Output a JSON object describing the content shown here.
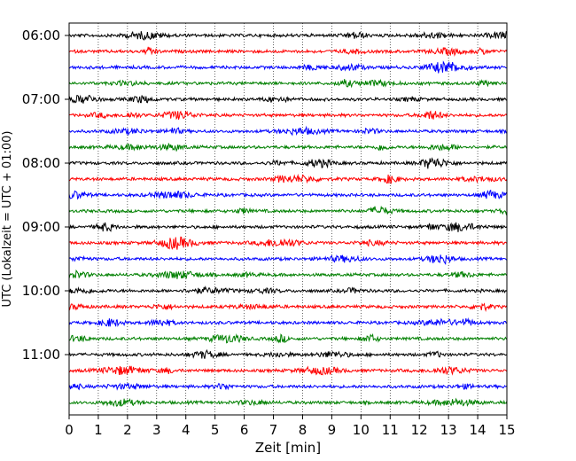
{
  "chart_data": {
    "type": "line",
    "title": "",
    "xlabel": "Zeit  [min]",
    "ylabel": "UTC (Lokalzeit = UTC + 01:00)",
    "xlim": [
      0,
      15
    ],
    "x_ticks": [
      0,
      1,
      2,
      3,
      4,
      5,
      6,
      7,
      8,
      9,
      10,
      11,
      12,
      13,
      14,
      15
    ],
    "x_tick_labels": [
      "0",
      "1",
      "2",
      "3",
      "4",
      "5",
      "6",
      "7",
      "8",
      "9",
      "10",
      "11",
      "12",
      "13",
      "14",
      "15"
    ],
    "y_tick_labels": [
      "06:00",
      "07:00",
      "08:00",
      "09:00",
      "10:00",
      "11:00"
    ],
    "grid_x": true,
    "colors": [
      "#000000",
      "#ff0000",
      "#0000ff",
      "#008000"
    ],
    "traces": [
      "06:00",
      "06:15",
      "06:30",
      "06:45",
      "07:00",
      "07:15",
      "07:30",
      "07:45",
      "08:00",
      "08:15",
      "08:30",
      "08:45",
      "09:00",
      "09:15",
      "09:30",
      "09:45",
      "10:00",
      "10:15",
      "10:30",
      "10:45",
      "11:00",
      "11:15",
      "11:30",
      "11:45"
    ]
  }
}
